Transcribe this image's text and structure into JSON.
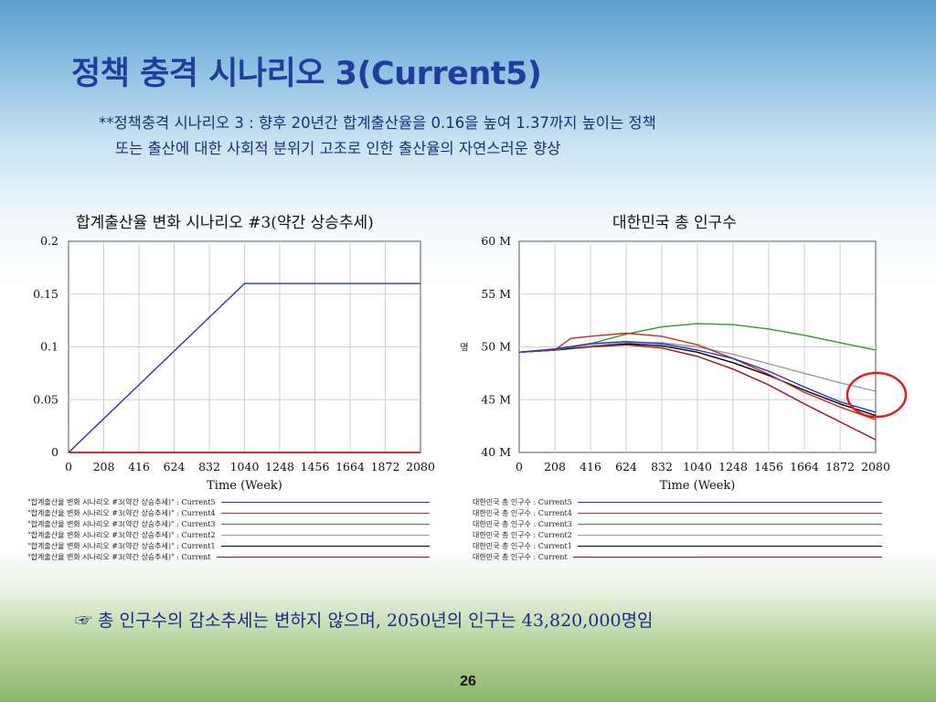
{
  "slide": {
    "title": "정책 충격 시나리오 3(Current5)",
    "note_line1": "**정책충격 시나리오 3 : 향후 20년간 합계출산율을 0.16을 높여 1.37까지 높이는 정책",
    "note_line2": "또는 출산에 대한 사회적 분위기 고조로 인한 출산율의 자연스러운 향상",
    "bottom_note": "☞ 총 인구수의 감소추세는 변하지 않으며, 2050년의 인구는 43,820,000명임",
    "page_number": "26"
  },
  "colors": {
    "Current5": "#2233cc",
    "Current4": "#cc2a1a",
    "Current3": "#2e9a2e",
    "Current2": "#9a9a9a",
    "Current1": "#000000",
    "Current": "#a01010",
    "highlight": "#e02020"
  },
  "chart_data": [
    {
      "type": "line",
      "title": "합계출산율 변화 시나리오 #3(약간 상승추세)",
      "xlabel": "Time (Week)",
      "ylabel": "",
      "xlim": [
        0,
        2080
      ],
      "ylim": [
        0,
        0.2
      ],
      "x_ticks": [
        "0",
        "208",
        "416",
        "624",
        "832",
        "1040",
        "1248",
        "1456",
        "1664",
        "1872",
        "2080"
      ],
      "y_ticks": [
        "0",
        "0.05",
        "0.1",
        "0.15",
        "0.2"
      ],
      "grid": true,
      "legend_position": "bottom",
      "series": [
        {
          "name": "\"합계출산율 변화 시나리오 #3(약간 상승추세)\" : Current5",
          "color_key": "Current5",
          "points": [
            [
              0,
              0
            ],
            [
              1040,
              0.16
            ],
            [
              2080,
              0.16
            ]
          ]
        },
        {
          "name": "\"합계출산율 변화 시나리오 #3(약간 상승추세)\" : Current4",
          "color_key": "Current4",
          "points": [
            [
              0,
              0
            ],
            [
              2080,
              0
            ]
          ]
        },
        {
          "name": "\"합계출산율 변화 시나리오 #3(약간 상승추세)\" : Current3",
          "color_key": "Current3",
          "points": [
            [
              0,
              0
            ],
            [
              2080,
              0
            ]
          ]
        },
        {
          "name": "\"합계출산율 변화 시나리오 #3(약간 상승추세)\" : Current2",
          "color_key": "Current2",
          "points": [
            [
              0,
              0
            ],
            [
              2080,
              0
            ]
          ]
        },
        {
          "name": "\"합계출산율 변화 시나리오 #3(약간 상승추세)\" : Current1",
          "color_key": "Current1",
          "points": [
            [
              0,
              0
            ],
            [
              2080,
              0
            ]
          ]
        },
        {
          "name": "\"합계출산율 변화 시나리오 #3(약간 상승추세)\" : Current",
          "color_key": "Current",
          "points": [
            [
              0,
              0
            ],
            [
              2080,
              0
            ]
          ]
        }
      ]
    },
    {
      "type": "line",
      "title": "대한민국 총 인구수",
      "xlabel": "Time (Week)",
      "ylabel": "명",
      "xlim": [
        0,
        2080
      ],
      "ylim": [
        40,
        60
      ],
      "x_ticks": [
        "0",
        "208",
        "416",
        "624",
        "832",
        "1040",
        "1248",
        "1456",
        "1664",
        "1872",
        "2080"
      ],
      "y_ticks": [
        "40 M",
        "45 M",
        "50 M",
        "55 M",
        "60 M"
      ],
      "grid": true,
      "legend_position": "bottom",
      "annotation": "red circle highlighting series end values near week 2080",
      "series": [
        {
          "name": "대한민국 총 인구수 : Current5",
          "color_key": "Current5",
          "points": [
            [
              0,
              49.5
            ],
            [
              208,
              49.8
            ],
            [
              416,
              50.3
            ],
            [
              624,
              50.5
            ],
            [
              832,
              50.3
            ],
            [
              1040,
              49.7
            ],
            [
              1248,
              48.9
            ],
            [
              1456,
              47.7
            ],
            [
              1664,
              46.2
            ],
            [
              1872,
              44.8
            ],
            [
              2080,
              43.8
            ]
          ]
        },
        {
          "name": "대한민국 총 인구수 : Current4",
          "color_key": "Current4",
          "points": [
            [
              0,
              49.5
            ],
            [
              208,
              49.7
            ],
            [
              300,
              50.8
            ],
            [
              416,
              51.0
            ],
            [
              624,
              51.3
            ],
            [
              832,
              51.0
            ],
            [
              1040,
              50.2
            ],
            [
              1248,
              48.9
            ],
            [
              1456,
              47.4
            ],
            [
              1664,
              45.7
            ],
            [
              1872,
              44.3
            ],
            [
              2080,
              43.1
            ]
          ]
        },
        {
          "name": "대한민국 총 인구수 : Current3",
          "color_key": "Current3",
          "points": [
            [
              0,
              49.5
            ],
            [
              208,
              49.7
            ],
            [
              416,
              50.3
            ],
            [
              624,
              51.2
            ],
            [
              832,
              51.9
            ],
            [
              1040,
              52.2
            ],
            [
              1248,
              52.1
            ],
            [
              1456,
              51.7
            ],
            [
              1664,
              51.1
            ],
            [
              1872,
              50.4
            ],
            [
              2080,
              49.7
            ]
          ]
        },
        {
          "name": "대한민국 총 인구수 : Current2",
          "color_key": "Current2",
          "points": [
            [
              0,
              49.5
            ],
            [
              208,
              49.8
            ],
            [
              416,
              50.1
            ],
            [
              624,
              50.4
            ],
            [
              832,
              50.4
            ],
            [
              1040,
              50.0
            ],
            [
              1248,
              49.3
            ],
            [
              1456,
              48.4
            ],
            [
              1664,
              47.5
            ],
            [
              1872,
              46.6
            ],
            [
              2080,
              45.8
            ]
          ]
        },
        {
          "name": "대한민국 총 인구수 : Current1",
          "color_key": "Current1",
          "points": [
            [
              0,
              49.5
            ],
            [
              208,
              49.7
            ],
            [
              416,
              50.1
            ],
            [
              624,
              50.3
            ],
            [
              832,
              50.1
            ],
            [
              1040,
              49.5
            ],
            [
              1248,
              48.5
            ],
            [
              1456,
              47.3
            ],
            [
              1664,
              45.9
            ],
            [
              1872,
              44.6
            ],
            [
              2080,
              43.5
            ]
          ]
        },
        {
          "name": "대한민국 총 인구수 : Current",
          "color_key": "Current",
          "points": [
            [
              0,
              49.5
            ],
            [
              208,
              49.7
            ],
            [
              416,
              50.0
            ],
            [
              624,
              50.2
            ],
            [
              832,
              49.9
            ],
            [
              1040,
              49.1
            ],
            [
              1248,
              47.9
            ],
            [
              1456,
              46.4
            ],
            [
              1664,
              44.6
            ],
            [
              1872,
              42.9
            ],
            [
              2080,
              41.2
            ]
          ]
        }
      ]
    }
  ]
}
